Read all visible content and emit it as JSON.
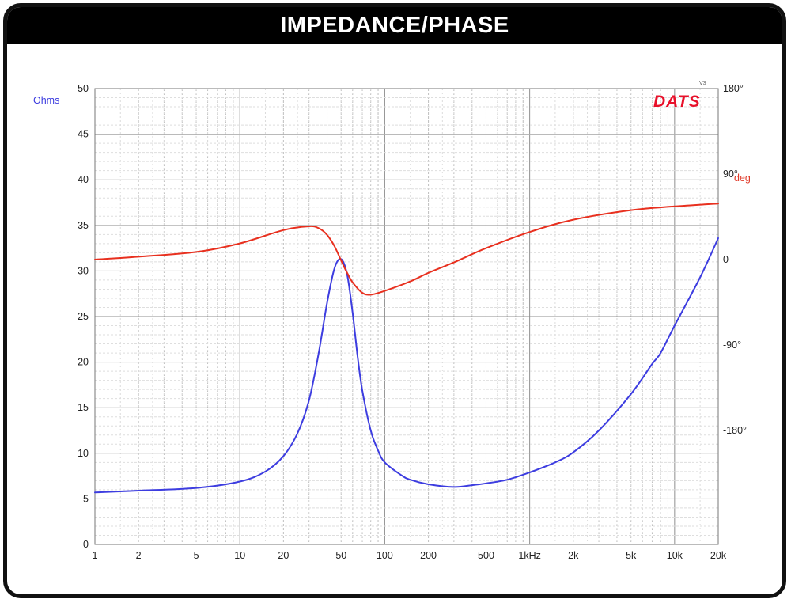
{
  "title": "IMPEDANCE/PHASE",
  "brand": "DATS",
  "brand_sup": "V3",
  "colors": {
    "impedance": "#3d3de0",
    "phase": "#e8301f",
    "grid": "#bfbfbf",
    "brand": "#e8102a"
  },
  "chart_data": {
    "type": "line",
    "title": "IMPEDANCE/PHASE",
    "xscale": "log",
    "xlim": [
      1,
      20000
    ],
    "x_tick_values": [
      1,
      2,
      5,
      10,
      20,
      50,
      100,
      200,
      500,
      1000,
      2000,
      5000,
      10000,
      20000
    ],
    "x_tick_labels": [
      "1",
      "2",
      "5",
      "10",
      "20",
      "50",
      "100",
      "200",
      "500",
      "1kHz",
      "2k",
      "5k",
      "10k",
      "20k"
    ],
    "ylabel": "Ohms",
    "ylim": [
      0,
      50
    ],
    "y_ticks": [
      "0",
      "5",
      "10",
      "15",
      "20",
      "25",
      "30",
      "35",
      "40",
      "45",
      "50"
    ],
    "y2label": "deg",
    "y2lim": [
      -300,
      180
    ],
    "y2_tick_values": [
      180,
      90,
      0,
      -90,
      -180
    ],
    "y2_tick_labels": [
      "180°",
      "90°",
      "0",
      "-90°",
      "-180°"
    ],
    "grid": true,
    "series": [
      {
        "name": "Impedance",
        "axis": "left",
        "color": "#3d3de0",
        "x": [
          1,
          2,
          5,
          10,
          15,
          20,
          25,
          30,
          35,
          40,
          45,
          50,
          55,
          60,
          65,
          70,
          80,
          90,
          100,
          130,
          150,
          200,
          300,
          400,
          500,
          700,
          1000,
          1500,
          2000,
          3000,
          5000,
          7000,
          8000,
          10000,
          15000,
          20000
        ],
        "values": [
          5.7,
          5.9,
          6.2,
          6.9,
          8.0,
          9.7,
          12.2,
          15.8,
          21.0,
          26.5,
          30.3,
          31.3,
          29.6,
          25.4,
          20.6,
          16.9,
          12.5,
          10.3,
          9.0,
          7.6,
          7.1,
          6.6,
          6.3,
          6.5,
          6.7,
          7.1,
          7.9,
          9.0,
          10.1,
          12.5,
          16.5,
          19.8,
          21.0,
          24.0,
          29.3,
          33.6
        ]
      },
      {
        "name": "Phase",
        "axis": "right",
        "color": "#e8301f",
        "x": [
          1,
          2,
          5,
          10,
          20,
          30,
          35,
          40,
          45,
          50,
          55,
          60,
          70,
          80,
          100,
          150,
          200,
          300,
          500,
          1000,
          2000,
          5000,
          10000,
          20000
        ],
        "values": [
          0,
          3,
          8,
          17,
          31,
          35,
          33,
          26,
          14,
          -1,
          -14,
          -24,
          -35,
          -37,
          -33,
          -23,
          -14,
          -3,
          12,
          29,
          42,
          52,
          56,
          59
        ]
      }
    ]
  }
}
